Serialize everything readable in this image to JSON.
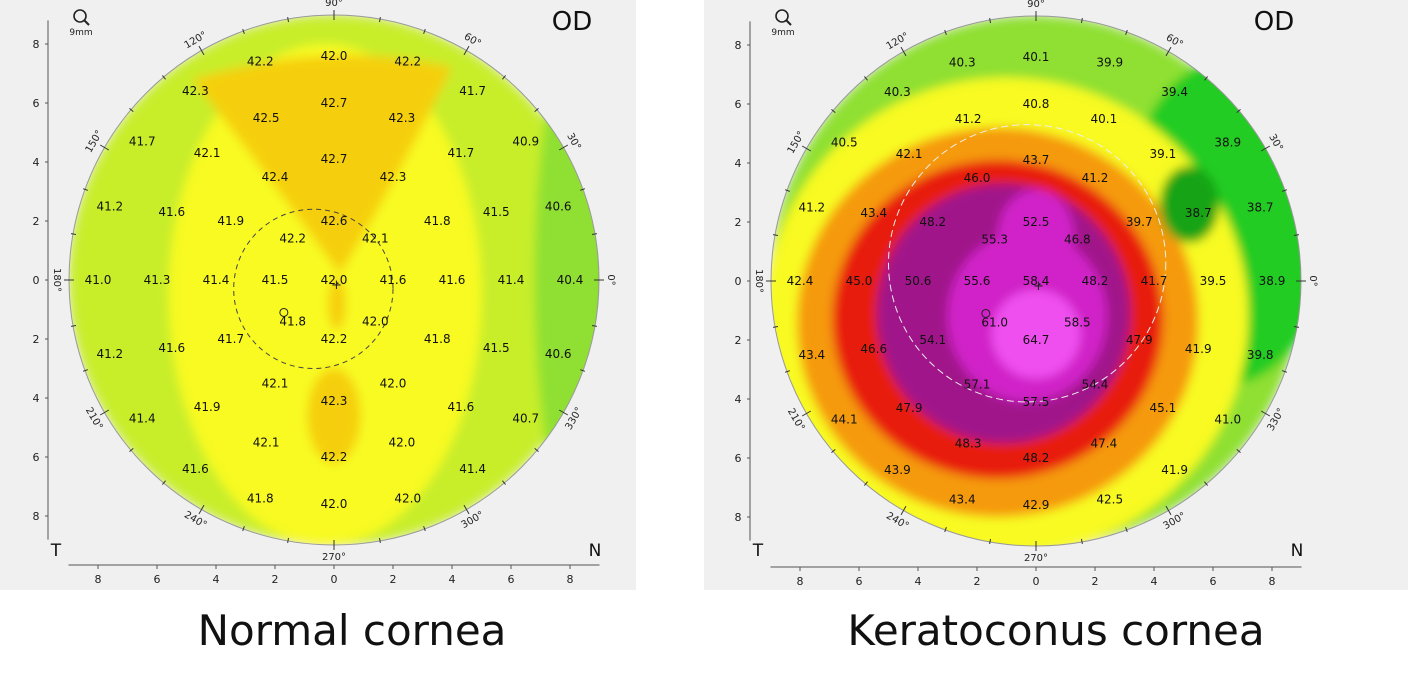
{
  "maps": [
    {
      "id": "normal",
      "caption": "Normal cornea",
      "eye": "OD",
      "zoom_label": "9mm",
      "side_left": "T",
      "side_right": "N",
      "angle_labels": [
        "90°",
        "60°",
        "30°",
        "0°",
        "330°",
        "300°",
        "270°",
        "240°",
        "210°",
        "180°",
        "150°",
        "120°"
      ],
      "axis_ticks": [
        "8",
        "6",
        "4",
        "2",
        "0",
        "2",
        "4",
        "6",
        "8"
      ],
      "colors": {
        "green": "#22cc22",
        "lightgreen": "#8fe030",
        "yellowgreen": "#c8ee2a",
        "yellow": "#f8fa20",
        "orange": "#f5cf0e"
      },
      "values": [
        {
          "v": "42.2",
          "x": -2.5,
          "y": 7.4
        },
        {
          "v": "42.0",
          "x": 0,
          "y": 7.6
        },
        {
          "v": "42.2",
          "x": 2.5,
          "y": 7.4
        },
        {
          "v": "42.3",
          "x": -4.7,
          "y": 6.4
        },
        {
          "v": "42.7",
          "x": 0,
          "y": 6.0
        },
        {
          "v": "41.7",
          "x": 4.7,
          "y": 6.4
        },
        {
          "v": "42.5",
          "x": -2.3,
          "y": 5.5
        },
        {
          "v": "42.3",
          "x": 2.3,
          "y": 5.5
        },
        {
          "v": "41.7",
          "x": -6.5,
          "y": 4.7
        },
        {
          "v": "42.1",
          "x": -4.3,
          "y": 4.3
        },
        {
          "v": "42.7",
          "x": 0,
          "y": 4.1
        },
        {
          "v": "41.7",
          "x": 4.3,
          "y": 4.3
        },
        {
          "v": "40.9",
          "x": 6.5,
          "y": 4.7
        },
        {
          "v": "42.4",
          "x": -2.0,
          "y": 3.5
        },
        {
          "v": "42.3",
          "x": 2.0,
          "y": 3.5
        },
        {
          "v": "41.2",
          "x": -7.6,
          "y": 2.5
        },
        {
          "v": "41.6",
          "x": -5.5,
          "y": 2.3
        },
        {
          "v": "41.9",
          "x": -3.5,
          "y": 2.0
        },
        {
          "v": "42.6",
          "x": 0,
          "y": 2.0
        },
        {
          "v": "41.8",
          "x": 3.5,
          "y": 2.0
        },
        {
          "v": "41.5",
          "x": 5.5,
          "y": 2.3
        },
        {
          "v": "40.6",
          "x": 7.6,
          "y": 2.5
        },
        {
          "v": "42.2",
          "x": -1.4,
          "y": 1.4
        },
        {
          "v": "42.1",
          "x": 1.4,
          "y": 1.4
        },
        {
          "v": "41.0",
          "x": -8.0,
          "y": 0
        },
        {
          "v": "41.3",
          "x": -6.0,
          "y": 0
        },
        {
          "v": "41.4",
          "x": -4.0,
          "y": 0
        },
        {
          "v": "41.5",
          "x": -2.0,
          "y": 0
        },
        {
          "v": "42.0",
          "x": 0,
          "y": 0
        },
        {
          "v": "41.6",
          "x": 2.0,
          "y": 0
        },
        {
          "v": "41.6",
          "x": 4.0,
          "y": 0
        },
        {
          "v": "41.4",
          "x": 6.0,
          "y": 0
        },
        {
          "v": "40.4",
          "x": 8.0,
          "y": 0
        },
        {
          "v": "41.8",
          "x": -1.4,
          "y": -1.4
        },
        {
          "v": "42.0",
          "x": 1.4,
          "y": -1.4
        },
        {
          "v": "41.2",
          "x": -7.6,
          "y": -2.5
        },
        {
          "v": "41.6",
          "x": -5.5,
          "y": -2.3
        },
        {
          "v": "41.7",
          "x": -3.5,
          "y": -2.0
        },
        {
          "v": "42.2",
          "x": 0,
          "y": -2.0
        },
        {
          "v": "41.8",
          "x": 3.5,
          "y": -2.0
        },
        {
          "v": "41.5",
          "x": 5.5,
          "y": -2.3
        },
        {
          "v": "40.6",
          "x": 7.6,
          "y": -2.5
        },
        {
          "v": "42.1",
          "x": -2.0,
          "y": -3.5
        },
        {
          "v": "42.0",
          "x": 2.0,
          "y": -3.5
        },
        {
          "v": "41.4",
          "x": -6.5,
          "y": -4.7
        },
        {
          "v": "41.9",
          "x": -4.3,
          "y": -4.3
        },
        {
          "v": "42.3",
          "x": 0,
          "y": -4.1
        },
        {
          "v": "41.6",
          "x": 4.3,
          "y": -4.3
        },
        {
          "v": "40.7",
          "x": 6.5,
          "y": -4.7
        },
        {
          "v": "42.1",
          "x": -2.3,
          "y": -5.5
        },
        {
          "v": "42.0",
          "x": 2.3,
          "y": -5.5
        },
        {
          "v": "41.6",
          "x": -4.7,
          "y": -6.4
        },
        {
          "v": "42.2",
          "x": 0,
          "y": -6.0
        },
        {
          "v": "41.4",
          "x": 4.7,
          "y": -6.4
        },
        {
          "v": "41.8",
          "x": -2.5,
          "y": -7.4
        },
        {
          "v": "42.0",
          "x": 0,
          "y": -7.6
        },
        {
          "v": "42.0",
          "x": 2.5,
          "y": -7.4
        }
      ]
    },
    {
      "id": "kc",
      "caption": "Keratoconus cornea",
      "eye": "OD",
      "zoom_label": "9mm",
      "side_left": "T",
      "side_right": "N",
      "angle_labels": [
        "90°",
        "60°",
        "30°",
        "0°",
        "330°",
        "300°",
        "270°",
        "240°",
        "210°",
        "180°",
        "150°",
        "120°"
      ],
      "axis_ticks": [
        "8",
        "6",
        "4",
        "2",
        "0",
        "2",
        "4",
        "6",
        "8"
      ],
      "colors": {
        "green": "#22cc22",
        "lightgreen": "#8fe030",
        "yellow": "#f8fa20",
        "orange": "#f59a10",
        "red": "#e81e10",
        "purple": "#a0148a",
        "magenta": "#d020c8",
        "pink": "#f050f0"
      },
      "values": [
        {
          "v": "40.3",
          "x": -2.5,
          "y": 7.4
        },
        {
          "v": "40.1",
          "x": 0,
          "y": 7.6
        },
        {
          "v": "39.9",
          "x": 2.5,
          "y": 7.4
        },
        {
          "v": "40.3",
          "x": -4.7,
          "y": 6.4
        },
        {
          "v": "40.8",
          "x": 0,
          "y": 6.0
        },
        {
          "v": "39.4",
          "x": 4.7,
          "y": 6.4
        },
        {
          "v": "41.2",
          "x": -2.3,
          "y": 5.5
        },
        {
          "v": "40.1",
          "x": 2.3,
          "y": 5.5
        },
        {
          "v": "40.5",
          "x": -6.5,
          "y": 4.7
        },
        {
          "v": "42.1",
          "x": -4.3,
          "y": 4.3
        },
        {
          "v": "43.7",
          "x": 0,
          "y": 4.1
        },
        {
          "v": "39.1",
          "x": 4.3,
          "y": 4.3
        },
        {
          "v": "38.9",
          "x": 6.5,
          "y": 4.7
        },
        {
          "v": "46.0",
          "x": -2.0,
          "y": 3.5
        },
        {
          "v": "41.2",
          "x": 2.0,
          "y": 3.5
        },
        {
          "v": "41.2",
          "x": -7.6,
          "y": 2.5
        },
        {
          "v": "43.4",
          "x": -5.5,
          "y": 2.3
        },
        {
          "v": "48.2",
          "x": -3.5,
          "y": 2.0
        },
        {
          "v": "52.5",
          "x": 0,
          "y": 2.0
        },
        {
          "v": "39.7",
          "x": 3.5,
          "y": 2.0
        },
        {
          "v": "38.7",
          "x": 5.5,
          "y": 2.3
        },
        {
          "v": "38.7",
          "x": 7.6,
          "y": 2.5
        },
        {
          "v": "55.3",
          "x": -1.4,
          "y": 1.4
        },
        {
          "v": "46.8",
          "x": 1.4,
          "y": 1.4
        },
        {
          "v": "42.4",
          "x": -8.0,
          "y": 0
        },
        {
          "v": "45.0",
          "x": -6.0,
          "y": 0
        },
        {
          "v": "50.6",
          "x": -4.0,
          "y": 0
        },
        {
          "v": "55.6",
          "x": -2.0,
          "y": 0
        },
        {
          "v": "58.4",
          "x": 0,
          "y": 0
        },
        {
          "v": "48.2",
          "x": 2.0,
          "y": 0
        },
        {
          "v": "41.7",
          "x": 4.0,
          "y": 0
        },
        {
          "v": "39.5",
          "x": 6.0,
          "y": 0
        },
        {
          "v": "38.9",
          "x": 8.0,
          "y": 0
        },
        {
          "v": "61.0",
          "x": -1.4,
          "y": -1.4
        },
        {
          "v": "58.5",
          "x": 1.4,
          "y": -1.4
        },
        {
          "v": "43.4",
          "x": -7.6,
          "y": -2.5
        },
        {
          "v": "46.6",
          "x": -5.5,
          "y": -2.3
        },
        {
          "v": "54.1",
          "x": -3.5,
          "y": -2.0
        },
        {
          "v": "64.7",
          "x": 0,
          "y": -2.0
        },
        {
          "v": "47.9",
          "x": 3.5,
          "y": -2.0
        },
        {
          "v": "41.9",
          "x": 5.5,
          "y": -2.3
        },
        {
          "v": "39.8",
          "x": 7.6,
          "y": -2.5
        },
        {
          "v": "57.1",
          "x": -2.0,
          "y": -3.5
        },
        {
          "v": "54.4",
          "x": 2.0,
          "y": -3.5
        },
        {
          "v": "44.1",
          "x": -6.5,
          "y": -4.7
        },
        {
          "v": "47.9",
          "x": -4.3,
          "y": -4.3
        },
        {
          "v": "57.5",
          "x": 0,
          "y": -4.1
        },
        {
          "v": "45.1",
          "x": 4.3,
          "y": -4.3
        },
        {
          "v": "41.0",
          "x": 6.5,
          "y": -4.7
        },
        {
          "v": "48.3",
          "x": -2.3,
          "y": -5.5
        },
        {
          "v": "47.4",
          "x": 2.3,
          "y": -5.5
        },
        {
          "v": "43.9",
          "x": -4.7,
          "y": -6.4
        },
        {
          "v": "48.2",
          "x": 0,
          "y": -6.0
        },
        {
          "v": "41.9",
          "x": 4.7,
          "y": -6.4
        },
        {
          "v": "43.4",
          "x": -2.5,
          "y": -7.4
        },
        {
          "v": "42.9",
          "x": 0,
          "y": -7.6
        },
        {
          "v": "42.5",
          "x": 2.5,
          "y": -7.4
        }
      ]
    }
  ]
}
